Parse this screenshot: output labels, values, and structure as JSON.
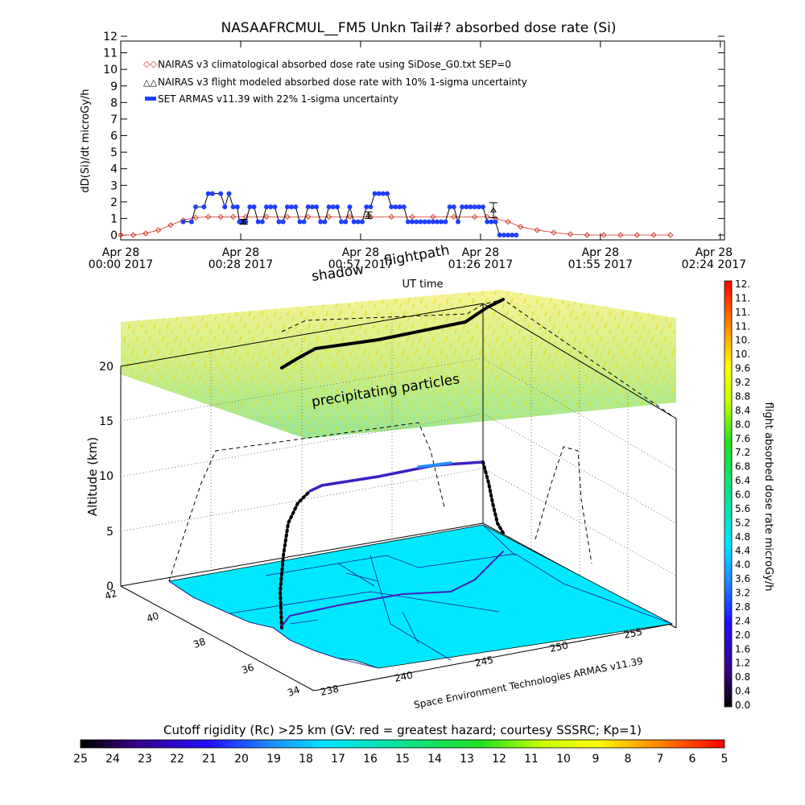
{
  "chart_data": [
    {
      "type": "line",
      "title": "NASAAFRCMUL__FM5 Unkn Tail#? absorbed dose rate (Si)",
      "xlabel": "UT time",
      "ylabel": "dD(Si)/dt microGy/h",
      "ylim": [
        0,
        12
      ],
      "yticks": [
        0,
        1,
        2,
        3,
        4,
        5,
        6,
        7,
        8,
        9,
        10,
        11,
        12
      ],
      "xlim_minutes": [
        0,
        145
      ],
      "xticks": [
        {
          "min": 0,
          "l1": "Apr 28",
          "l2": "00:00 2017"
        },
        {
          "min": 28.8,
          "l1": "Apr 28",
          "l2": "00:28 2017"
        },
        {
          "min": 57.6,
          "l1": "Apr 28",
          "l2": "00:57 2017"
        },
        {
          "min": 86.4,
          "l1": "Apr 28",
          "l2": "01:26 2017"
        },
        {
          "min": 115.2,
          "l1": "Apr 28",
          "l2": "01:55 2017"
        },
        {
          "min": 144,
          "l1": "Apr 28",
          "l2": "02:24 2017"
        }
      ],
      "legend_position": "top-left",
      "series": [
        {
          "name": "NAIRAS v3 climatological absorbed dose rate using SiDose_G0.txt SEP=0",
          "marker": "diamond",
          "color": "#d03020",
          "x": [
            0,
            3,
            6,
            9,
            12,
            15,
            18,
            21,
            24,
            27,
            30,
            35,
            40,
            45,
            50,
            55,
            60,
            65,
            70,
            75,
            80,
            85,
            88,
            90,
            93,
            96,
            100,
            104,
            108,
            112,
            116,
            120,
            124,
            128,
            132
          ],
          "values": [
            0,
            0,
            0.1,
            0.3,
            0.6,
            0.9,
            1.05,
            1.1,
            1.1,
            1.1,
            1.1,
            1.1,
            1.1,
            1.1,
            1.1,
            1.1,
            1.1,
            1.1,
            1.1,
            1.1,
            1.1,
            1.1,
            1.1,
            1.0,
            0.8,
            0.5,
            0.3,
            0.15,
            0.05,
            0,
            0,
            0,
            0,
            0,
            0
          ]
        },
        {
          "name": "NAIRAS v3 flight modeled absorbed dose rate with 10% 1-sigma uncertainty",
          "marker": "triangle",
          "color": "#000000",
          "x": [
            29.5,
            59.5,
            89.5
          ],
          "values": [
            0.8,
            1.2,
            1.5
          ],
          "errors": [
            0.15,
            0.2,
            0.45
          ]
        },
        {
          "name": "SET ARMAS v11.39 with 22% 1-sigma uncertainty",
          "marker": "circle",
          "color": "#1f3fff",
          "x": [
            15,
            17,
            18,
            20,
            21,
            22,
            24,
            25,
            26,
            27,
            28,
            28.5,
            29,
            30,
            31,
            32,
            33,
            34,
            35,
            36,
            37,
            38,
            39,
            40,
            41,
            42,
            43,
            44,
            45,
            46,
            47,
            48,
            49,
            50,
            51,
            52,
            53,
            54,
            55,
            56,
            57,
            58,
            59,
            60,
            61,
            62,
            63,
            64,
            65,
            66,
            67,
            68,
            69,
            70,
            71,
            72,
            73,
            74,
            75,
            76,
            77,
            78,
            79,
            80,
            81,
            82,
            83,
            84,
            85,
            86,
            87,
            88,
            89,
            90,
            91,
            92,
            93,
            94,
            95
          ],
          "values": [
            0.8,
            0.8,
            1.7,
            1.7,
            2.5,
            2.5,
            2.5,
            1.7,
            2.5,
            1.7,
            1.7,
            0.8,
            0.8,
            0.8,
            1.7,
            1.7,
            0.8,
            0.8,
            1.7,
            1.7,
            1.7,
            0.8,
            0.8,
            1.7,
            1.7,
            1.7,
            0.8,
            0.8,
            1.7,
            1.7,
            1.7,
            0.8,
            0.8,
            1.7,
            1.7,
            1.7,
            0.8,
            0.8,
            1.7,
            0.8,
            0.8,
            0.8,
            1.7,
            1.7,
            2.5,
            2.5,
            2.5,
            2.5,
            1.7,
            1.7,
            1.7,
            1.7,
            0.8,
            0.8,
            0.8,
            0.8,
            0.8,
            0.8,
            0.8,
            0.8,
            0.8,
            0.8,
            1.7,
            1.7,
            0.8,
            1.7,
            1.7,
            1.7,
            1.7,
            1.7,
            1.7,
            0.8,
            0.8,
            0.8,
            0,
            0,
            0,
            0,
            0
          ]
        }
      ]
    },
    {
      "type": "scatter",
      "subtype": "3d-flight-track",
      "zlabel": "Altitude (km)",
      "zticks": [
        0,
        5,
        10,
        15,
        20
      ],
      "lat_ticks": [
        "42",
        "40",
        "38",
        "36",
        "34"
      ],
      "lon_ticks": [
        "238",
        "240",
        "245",
        "250",
        "255"
      ],
      "annotations": [
        "shadow",
        "flightpath",
        "precipitating particles"
      ],
      "credit": "Space Environment Technologies ARMAS v11.39"
    }
  ],
  "colorbar_right": {
    "label": "flight absorbed dose rate microGy/h",
    "ticks": [
      "0.0",
      "0.4",
      "0.8",
      "1.2",
      "1.6",
      "2.0",
      "2.4",
      "2.8",
      "3.2",
      "3.6",
      "4.0",
      "4.4",
      "4.8",
      "5.2",
      "5.6",
      "6.0",
      "6.4",
      "6.8",
      "7.2",
      "7.6",
      "8.0",
      "8.4",
      "8.8",
      "9.2",
      "9.6",
      "10.",
      "10.",
      "11.",
      "11.",
      "11.",
      "12."
    ]
  },
  "colorbar_bottom": {
    "label": "Cutoff rigidity (Rc) >25 km (GV: red = greatest hazard; courtesy SSSRC; Kp=1)",
    "ticks": [
      "25",
      "24",
      "23",
      "22",
      "21",
      "20",
      "19",
      "18",
      "17",
      "16",
      "15",
      "14",
      "13",
      "12",
      "11",
      "10",
      "9",
      "8",
      "7",
      "6",
      "5"
    ]
  }
}
